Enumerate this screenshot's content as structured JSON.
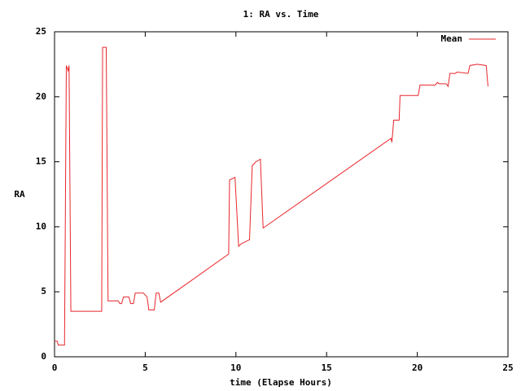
{
  "chart_data": {
    "type": "line",
    "title": "1: RA vs. Time",
    "x_label": "time (Elapse Hours)",
    "y_label": "RA",
    "xlim": [
      0,
      25
    ],
    "ylim": [
      0,
      25
    ],
    "xticks": [
      0,
      5,
      10,
      15,
      20,
      25
    ],
    "yticks": [
      0,
      5,
      10,
      15,
      20,
      25
    ],
    "legend": "top-right",
    "series": [
      {
        "name": "Mean",
        "color": "#e8262b",
        "x": [
          0,
          0.15,
          0.2,
          0.55,
          0.65,
          0.75,
          0.8,
          0.9,
          2.6,
          2.65,
          2.85,
          2.95,
          3.5,
          3.6,
          3.7,
          3.8,
          4.1,
          4.2,
          4.35,
          4.45,
          4.9,
          5.1,
          5.2,
          5.5,
          5.6,
          5.75,
          5.85,
          9.6,
          9.65,
          9.95,
          10.15,
          10.3,
          10.75,
          10.9,
          11.1,
          11.35,
          11.5,
          18.55,
          18.6,
          18.7,
          19,
          19.05,
          20.05,
          20.15,
          21,
          21.1,
          21.2,
          21.6,
          21.7,
          21.8,
          22.1,
          22.2,
          22.8,
          22.9,
          23.3,
          23.8,
          23.9
        ],
        "values": [
          1.2,
          1.2,
          0.9,
          0.9,
          22.4,
          22,
          22.4,
          3.5,
          3.5,
          23.8,
          23.8,
          4.3,
          4.3,
          4.1,
          4.1,
          4.6,
          4.6,
          4.1,
          4.1,
          4.9,
          4.9,
          4.6,
          3.6,
          3.6,
          4.9,
          4.9,
          4.2,
          7.9,
          13.6,
          13.8,
          8.5,
          8.7,
          9,
          14.7,
          15,
          15.2,
          9.9,
          16.8,
          16.5,
          18.2,
          18.2,
          20.1,
          20.1,
          20.9,
          20.9,
          21.1,
          21,
          21,
          20.8,
          21.8,
          21.8,
          21.9,
          21.8,
          22.4,
          22.5,
          22.4,
          20.8
        ]
      }
    ]
  }
}
